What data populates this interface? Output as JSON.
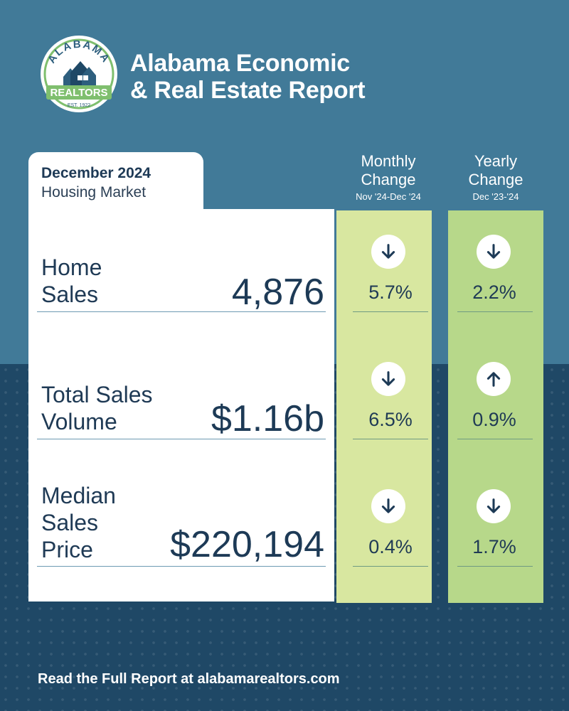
{
  "logo": {
    "arc_text": "ALABAMA",
    "banner_text": "REALTORS",
    "est_text": "EST. 1922"
  },
  "header": {
    "title_line1": "Alabama Economic",
    "title_line2": "& Real Estate Report"
  },
  "card": {
    "period": "December 2024",
    "subtitle": "Housing Market"
  },
  "columns": {
    "monthly": {
      "title_line1": "Monthly",
      "title_line2": "Change",
      "range": "Nov '24-Dec '24"
    },
    "yearly": {
      "title_line1": "Yearly",
      "title_line2": "Change",
      "range": "Dec '23-'24"
    }
  },
  "metrics": [
    {
      "label_lines": [
        "Home",
        "Sales"
      ],
      "value": "4,876",
      "monthly": {
        "direction": "down",
        "icon": "arrow-down-icon",
        "change": "5.7%"
      },
      "yearly": {
        "direction": "down",
        "icon": "arrow-down-icon",
        "change": "2.2%"
      }
    },
    {
      "label_lines": [
        "Total Sales",
        "Volume"
      ],
      "value": "$1.16b",
      "monthly": {
        "direction": "down",
        "icon": "arrow-down-icon",
        "change": "6.5%"
      },
      "yearly": {
        "direction": "up",
        "icon": "arrow-up-icon",
        "change": "0.9%"
      }
    },
    {
      "label_lines": [
        "Median",
        "Sales",
        "Price"
      ],
      "value": "$220,194",
      "monthly": {
        "direction": "down",
        "icon": "arrow-down-icon",
        "change": "0.4%"
      },
      "yearly": {
        "direction": "down",
        "icon": "arrow-down-icon",
        "change": "1.7%"
      }
    }
  ],
  "footer": {
    "text": "Read the Full Report at alabamarealtors.com"
  },
  "colors": {
    "background_top": "#417a98",
    "background_bottom": "#1f4866",
    "monthly_column": "#d8e7a0",
    "yearly_column": "#b7d88a",
    "text_dark": "#1d3a56",
    "logo_green": "#7fbf6e"
  }
}
